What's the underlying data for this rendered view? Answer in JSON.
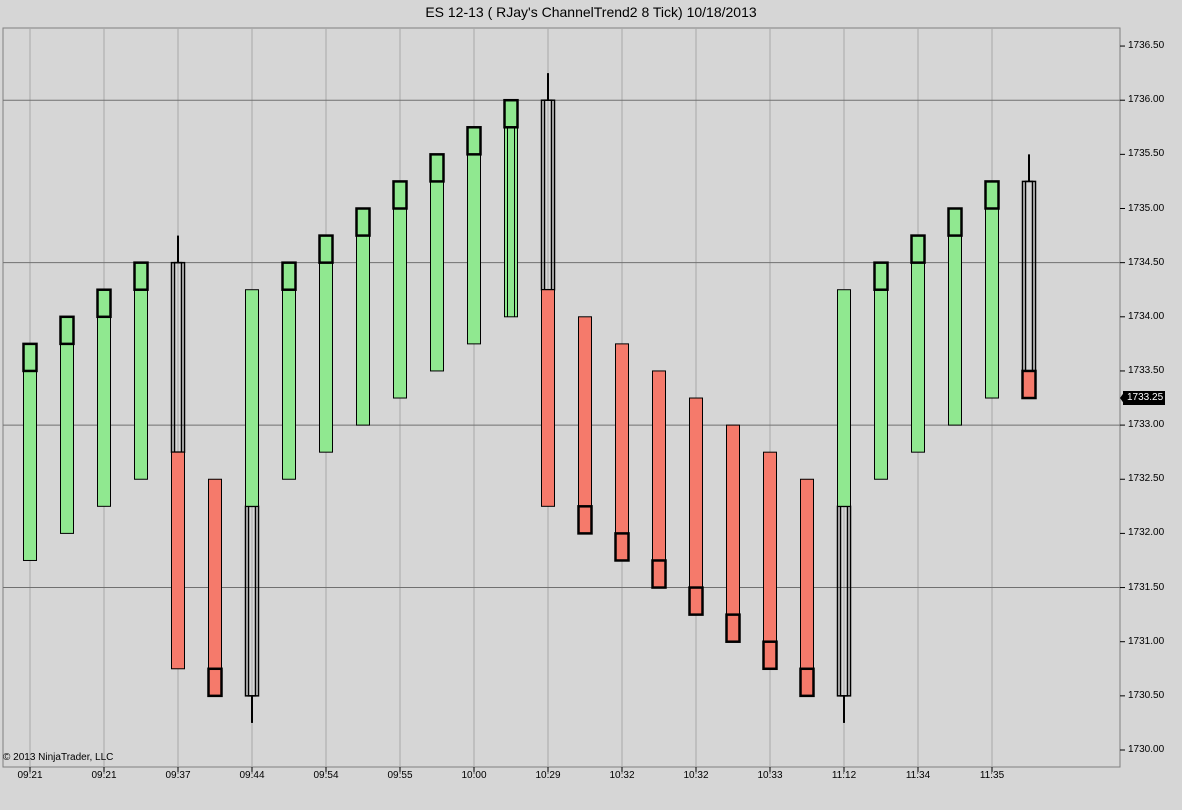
{
  "title": "ES 12-13 ( RJay's ChannelTrend2  8 Tick)  10/18/2013",
  "copyright": "© 2013 NinjaTrader, LLC",
  "colors": {
    "up": "#90e890",
    "down": "#f57a6b",
    "outline": "#000000",
    "background": "#d6d6d6"
  },
  "chart_data": {
    "type": "ohlc",
    "title": "ES 12-13 ( RJay's ChannelTrend2  8 Tick)  10/18/2013",
    "ylim": [
      1730.0,
      1736.6
    ],
    "y_ticks": [
      "1730.00",
      "1730.50",
      "1731.00",
      "1731.50",
      "1732.00",
      "1732.50",
      "1733.00",
      "1733.50",
      "1734.00",
      "1734.50",
      "1735.00",
      "1735.50",
      "1736.00",
      "1736.50"
    ],
    "major_ticks": [
      1731.5,
      1733.0,
      1734.5,
      1736.0
    ],
    "time_labels": [
      "09:21",
      "09:21",
      "09:37",
      "09:44",
      "09:54",
      "09:55",
      "10:00",
      "10:29",
      "10:32",
      "10:32",
      "10:33",
      "11:12",
      "11:34",
      "11:35"
    ],
    "last_price": "1733.25",
    "bars": [
      {
        "x": 30,
        "lo": 1731.75,
        "hi": 1733.75,
        "bd": 1733.5,
        "bt": 1733.75,
        "wl": null,
        "wh": null,
        "c": "up"
      },
      {
        "x": 67,
        "lo": 1732.0,
        "hi": 1734.0,
        "bd": 1733.75,
        "bt": 1734.0,
        "wl": null,
        "wh": null,
        "c": "up"
      },
      {
        "x": 104,
        "lo": 1732.25,
        "hi": 1734.25,
        "bd": 1734.0,
        "bt": 1734.25,
        "wl": null,
        "wh": null,
        "c": "up"
      },
      {
        "x": 141,
        "lo": 1732.5,
        "hi": 1734.5,
        "bd": 1734.25,
        "bt": 1734.5,
        "wl": 1733.75,
        "wh": 1734.25,
        "c": "up"
      },
      {
        "x": 178,
        "lo": 1730.75,
        "hi": 1732.75,
        "bd": null,
        "bt": null,
        "wl": 1734.5,
        "wh": 1734.75,
        "c": "down",
        "ghost": [
          1732.75,
          1734.5
        ]
      },
      {
        "x": 215,
        "lo": 1730.5,
        "hi": 1732.5,
        "bd": 1730.5,
        "bt": 1730.75,
        "wl": null,
        "wh": null,
        "c": "down"
      },
      {
        "x": 252,
        "lo": 1732.25,
        "hi": 1734.25,
        "bd": null,
        "bt": null,
        "wl": 1730.25,
        "wh": 1730.5,
        "c": "up",
        "ghost": [
          1730.5,
          1732.25
        ]
      },
      {
        "x": 289,
        "lo": 1732.5,
        "hi": 1734.5,
        "bd": 1734.25,
        "bt": 1734.5,
        "wl": 1733.5,
        "wh": 1734.25,
        "c": "up"
      },
      {
        "x": 326,
        "lo": 1732.75,
        "hi": 1734.75,
        "bd": 1734.5,
        "bt": 1734.75,
        "wl": null,
        "wh": null,
        "c": "up"
      },
      {
        "x": 363,
        "lo": 1733.0,
        "hi": 1735.0,
        "bd": 1734.75,
        "bt": 1735.0,
        "wl": null,
        "wh": null,
        "c": "up"
      },
      {
        "x": 400,
        "lo": 1733.25,
        "hi": 1735.25,
        "bd": 1735.0,
        "bt": 1735.25,
        "wl": 1734.75,
        "wh": 1735.0,
        "c": "up"
      },
      {
        "x": 437,
        "lo": 1733.5,
        "hi": 1735.5,
        "bd": 1735.25,
        "bt": 1735.5,
        "wl": null,
        "wh": null,
        "c": "up"
      },
      {
        "x": 474,
        "lo": 1733.75,
        "hi": 1735.75,
        "bd": 1735.5,
        "bt": 1735.75,
        "wl": 1734.75,
        "wh": 1735.5,
        "c": "up"
      },
      {
        "x": 511,
        "lo": 1734.0,
        "hi": 1736.0,
        "bd": 1735.75,
        "bt": 1736.0,
        "wl": null,
        "wh": null,
        "c": "up",
        "inner": true
      },
      {
        "x": 548,
        "lo": 1732.25,
        "hi": 1734.25,
        "bd": null,
        "bt": null,
        "wl": 1736.0,
        "wh": 1736.25,
        "c": "down",
        "ghost": [
          1734.25,
          1736.0
        ]
      },
      {
        "x": 585,
        "lo": 1732.0,
        "hi": 1734.0,
        "bd": 1732.0,
        "bt": 1732.25,
        "wl": 1732.25,
        "wh": 1732.5,
        "c": "down"
      },
      {
        "x": 622,
        "lo": 1731.75,
        "hi": 1733.75,
        "bd": 1731.75,
        "bt": 1732.0,
        "wl": null,
        "wh": null,
        "c": "down"
      },
      {
        "x": 659,
        "lo": 1731.5,
        "hi": 1733.5,
        "bd": 1731.5,
        "bt": 1731.75,
        "wl": null,
        "wh": null,
        "c": "down"
      },
      {
        "x": 696,
        "lo": 1731.25,
        "hi": 1733.25,
        "bd": 1731.25,
        "bt": 1731.5,
        "wl": null,
        "wh": null,
        "c": "down"
      },
      {
        "x": 733,
        "lo": 1731.0,
        "hi": 1733.0,
        "bd": 1731.0,
        "bt": 1731.25,
        "wl": null,
        "wh": null,
        "c": "down"
      },
      {
        "x": 770,
        "lo": 1730.75,
        "hi": 1732.75,
        "bd": 1730.75,
        "bt": 1731.0,
        "wl": 1731.0,
        "wh": 1731.25,
        "c": "down"
      },
      {
        "x": 807,
        "lo": 1730.5,
        "hi": 1732.5,
        "bd": 1730.5,
        "bt": 1730.75,
        "wl": null,
        "wh": null,
        "c": "down"
      },
      {
        "x": 844,
        "lo": 1732.25,
        "hi": 1734.25,
        "bd": null,
        "bt": null,
        "wl": 1730.25,
        "wh": 1730.5,
        "c": "up",
        "ghost": [
          1730.5,
          1732.25
        ]
      },
      {
        "x": 881,
        "lo": 1732.5,
        "hi": 1734.5,
        "bd": 1734.25,
        "bt": 1734.5,
        "wl": 1733.0,
        "wh": 1734.25,
        "c": "up"
      },
      {
        "x": 918,
        "lo": 1732.75,
        "hi": 1734.75,
        "bd": 1734.5,
        "bt": 1734.75,
        "wl": null,
        "wh": null,
        "c": "up"
      },
      {
        "x": 955,
        "lo": 1733.0,
        "hi": 1735.0,
        "bd": 1734.75,
        "bt": 1735.0,
        "wl": null,
        "wh": null,
        "c": "up"
      },
      {
        "x": 992,
        "lo": 1733.25,
        "hi": 1735.25,
        "bd": 1735.0,
        "bt": 1735.25,
        "wl": 1734.5,
        "wh": 1735.0,
        "c": "up"
      },
      {
        "x": 1029,
        "lo": 1733.25,
        "hi": 1733.5,
        "bd": 1733.25,
        "bt": 1733.5,
        "wl": 1735.25,
        "wh": 1735.5,
        "c": "down",
        "ghost": [
          1733.5,
          1735.25
        ]
      }
    ]
  }
}
